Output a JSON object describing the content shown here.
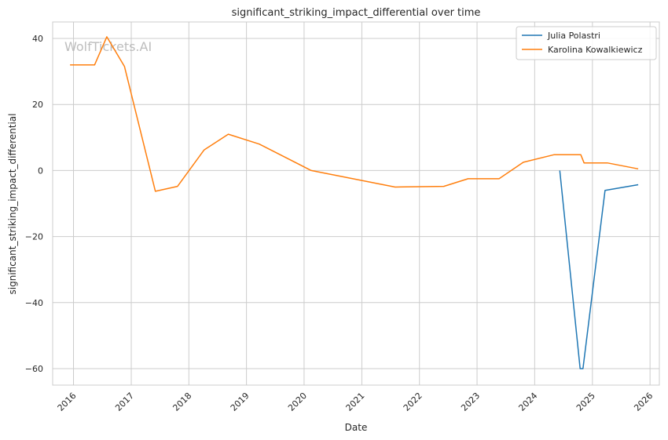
{
  "chart_data": {
    "type": "line",
    "title": "significant_striking_impact_differential over time",
    "xlabel": "Date",
    "ylabel": "significant_striking_impact_differential",
    "watermark": "WolfTickets.AI",
    "xlim": [
      "2015-08-22",
      "2026-03-01"
    ],
    "ylim": [
      -65,
      45
    ],
    "x_ticks": [
      "2016",
      "2017",
      "2018",
      "2019",
      "2020",
      "2021",
      "2022",
      "2023",
      "2024",
      "2025",
      "2026"
    ],
    "y_ticks": [
      40,
      20,
      0,
      -20,
      -40,
      -60
    ],
    "y_tick_labels": [
      "40",
      "20",
      "0",
      "−20",
      "−40",
      "−60"
    ],
    "grid": true,
    "legend_position": "top-right",
    "series": [
      {
        "name": "Julia Polastri",
        "color": "#1f77b4",
        "points": [
          [
            "2024-06-08",
            0
          ],
          [
            "2024-10-15",
            -60
          ],
          [
            "2024-11-02",
            -60
          ],
          [
            "2025-03-22",
            -6
          ],
          [
            "2025-10-18",
            -4.3
          ]
        ]
      },
      {
        "name": "Karolina Kowalkiewicz",
        "color": "#ff7f0e",
        "points": [
          [
            "2015-12-10",
            32
          ],
          [
            "2016-05-14",
            32
          ],
          [
            "2016-07-30",
            40.5
          ],
          [
            "2016-11-19",
            31.5
          ],
          [
            "2017-06-03",
            -6.3
          ],
          [
            "2017-10-21",
            -4.8
          ],
          [
            "2018-04-07",
            6.2
          ],
          [
            "2018-09-08",
            11
          ],
          [
            "2019-03-23",
            8
          ],
          [
            "2020-02-15",
            0
          ],
          [
            "2021-07-31",
            -5
          ],
          [
            "2022-06-04",
            -4.8
          ],
          [
            "2022-11-05",
            -2.5
          ],
          [
            "2023-05-20",
            -2.5
          ],
          [
            "2023-10-21",
            2.5
          ],
          [
            "2024-05-04",
            4.8
          ],
          [
            "2024-10-19",
            4.8
          ],
          [
            "2024-11-09",
            2.3
          ],
          [
            "2025-04-05",
            2.3
          ],
          [
            "2025-10-18",
            0.5
          ]
        ]
      }
    ]
  }
}
